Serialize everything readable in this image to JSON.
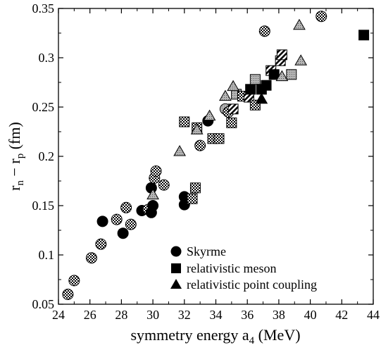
{
  "chart_data": {
    "type": "scatter",
    "xlabel": "symmetry energy a",
    "xlabel_sub": "4",
    "xlabel_unit": " (MeV)",
    "ylabel_parts": [
      "r",
      "n",
      " − r",
      "p",
      " (fm)"
    ],
    "xlim": [
      24,
      44
    ],
    "ylim": [
      0.05,
      0.35
    ],
    "x_ticks": [
      24,
      26,
      28,
      30,
      32,
      34,
      36,
      38,
      40,
      42,
      44
    ],
    "y_ticks": [
      "0.05",
      "0.1",
      "0.15",
      "0.2",
      "0.25",
      "0.3",
      "0.35"
    ],
    "grid": false,
    "legend_position": "bottom-right",
    "series": [
      {
        "name": "Skyrme",
        "marker": "circle",
        "points": [
          {
            "x": 24.6,
            "y": 0.06,
            "fill": "checker"
          },
          {
            "x": 25.0,
            "y": 0.074,
            "fill": "checker"
          },
          {
            "x": 26.1,
            "y": 0.097,
            "fill": "checker"
          },
          {
            "x": 26.7,
            "y": 0.111,
            "fill": "checker"
          },
          {
            "x": 26.8,
            "y": 0.134,
            "fill": "solid"
          },
          {
            "x": 27.7,
            "y": 0.136,
            "fill": "checker"
          },
          {
            "x": 28.1,
            "y": 0.122,
            "fill": "solid"
          },
          {
            "x": 28.3,
            "y": 0.148,
            "fill": "checker"
          },
          {
            "x": 28.6,
            "y": 0.131,
            "fill": "checker"
          },
          {
            "x": 29.3,
            "y": 0.145,
            "fill": "solid"
          },
          {
            "x": 29.7,
            "y": 0.146,
            "fill": "checker"
          },
          {
            "x": 29.9,
            "y": 0.143,
            "fill": "solid"
          },
          {
            "x": 30.0,
            "y": 0.15,
            "fill": "solid"
          },
          {
            "x": 29.9,
            "y": 0.168,
            "fill": "solid"
          },
          {
            "x": 30.1,
            "y": 0.178,
            "fill": "checker"
          },
          {
            "x": 30.2,
            "y": 0.185,
            "fill": "checker"
          },
          {
            "x": 30.7,
            "y": 0.171,
            "fill": "checker"
          },
          {
            "x": 32.0,
            "y": 0.159,
            "fill": "solid"
          },
          {
            "x": 32.0,
            "y": 0.151,
            "fill": "solid"
          },
          {
            "x": 33.0,
            "y": 0.211,
            "fill": "checker"
          },
          {
            "x": 33.5,
            "y": 0.236,
            "fill": "solid"
          },
          {
            "x": 34.6,
            "y": 0.248,
            "fill": "gray"
          },
          {
            "x": 34.8,
            "y": 0.245,
            "fill": "checker"
          },
          {
            "x": 37.1,
            "y": 0.327,
            "fill": "checker"
          },
          {
            "x": 40.7,
            "y": 0.342,
            "fill": "checker"
          }
        ]
      },
      {
        "name": "relativistic meson",
        "marker": "square",
        "points": [
          {
            "x": 32.0,
            "y": 0.235,
            "fill": "checker"
          },
          {
            "x": 32.5,
            "y": 0.157,
            "fill": "checker"
          },
          {
            "x": 32.7,
            "y": 0.168,
            "fill": "checker"
          },
          {
            "x": 32.8,
            "y": 0.229,
            "fill": "checker"
          },
          {
            "x": 33.8,
            "y": 0.218,
            "fill": "checker"
          },
          {
            "x": 34.2,
            "y": 0.218,
            "fill": "checker"
          },
          {
            "x": 35.0,
            "y": 0.234,
            "fill": "checker"
          },
          {
            "x": 35.1,
            "y": 0.248,
            "fill": "hatch"
          },
          {
            "x": 35.3,
            "y": 0.263,
            "fill": "gray"
          },
          {
            "x": 35.7,
            "y": 0.261,
            "fill": "checker"
          },
          {
            "x": 36.1,
            "y": 0.26,
            "fill": "hatch"
          },
          {
            "x": 36.2,
            "y": 0.268,
            "fill": "solid"
          },
          {
            "x": 36.5,
            "y": 0.278,
            "fill": "gray"
          },
          {
            "x": 36.5,
            "y": 0.252,
            "fill": "checker"
          },
          {
            "x": 36.9,
            "y": 0.268,
            "fill": "solid"
          },
          {
            "x": 37.2,
            "y": 0.272,
            "fill": "solid"
          },
          {
            "x": 37.5,
            "y": 0.287,
            "fill": "hatch"
          },
          {
            "x": 37.7,
            "y": 0.283,
            "fill": "solid"
          },
          {
            "x": 38.1,
            "y": 0.297,
            "fill": "hatch"
          },
          {
            "x": 38.2,
            "y": 0.303,
            "fill": "hatch"
          },
          {
            "x": 38.8,
            "y": 0.283,
            "fill": "gray"
          },
          {
            "x": 43.4,
            "y": 0.323,
            "fill": "solid"
          }
        ]
      },
      {
        "name": "relativistic point coupling",
        "marker": "triangle",
        "points": [
          {
            "x": 30.0,
            "y": 0.161,
            "fill": "gray"
          },
          {
            "x": 31.7,
            "y": 0.205,
            "fill": "gray"
          },
          {
            "x": 32.8,
            "y": 0.227,
            "fill": "gray"
          },
          {
            "x": 33.6,
            "y": 0.241,
            "fill": "gray"
          },
          {
            "x": 34.6,
            "y": 0.261,
            "fill": "gray"
          },
          {
            "x": 35.1,
            "y": 0.271,
            "fill": "gray"
          },
          {
            "x": 36.9,
            "y": 0.258,
            "fill": "solid"
          },
          {
            "x": 38.2,
            "y": 0.281,
            "fill": "gray"
          },
          {
            "x": 39.4,
            "y": 0.297,
            "fill": "gray"
          },
          {
            "x": 39.3,
            "y": 0.333,
            "fill": "gray"
          }
        ]
      }
    ]
  }
}
